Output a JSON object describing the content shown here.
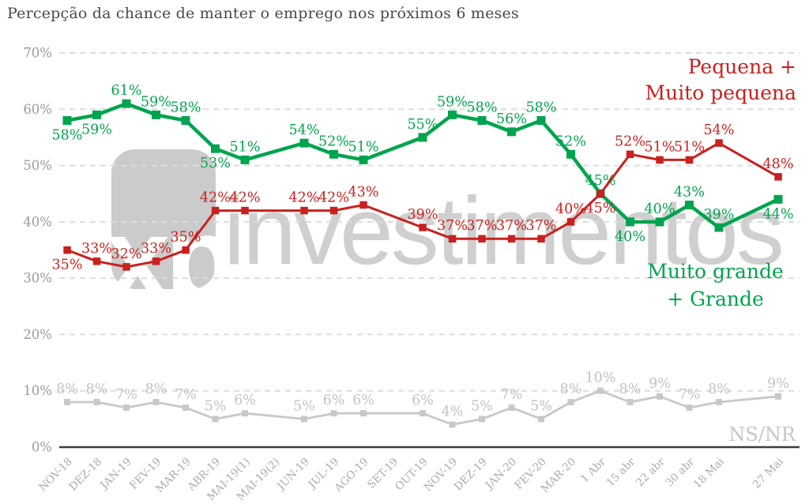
{
  "title": "Percepção da chance de manter o emprego nos próximos 6 meses",
  "watermark": {
    "logo_text": "xp",
    "name_text": "investimentos"
  },
  "chart_data": {
    "type": "line",
    "title": "Percepção da chance de manter o emprego nos próximos 6 meses",
    "categories": [
      "NOV-18",
      "DEZ-18",
      "JAN-19",
      "FEV-19",
      "MAR-19",
      "ABR-19",
      "MAI-19(1)",
      "MAI-19(2)",
      "JUN-19",
      "JUL-19",
      "AGO-19",
      "SET-19",
      "OUT-19",
      "NOV-19",
      "DEZ-19",
      "JAN-20",
      "FEV-20",
      "MAR-20",
      "1 Abr",
      "15 abr",
      "22 abr",
      "30 abr",
      "18 Mai",
      "",
      "27 Mai"
    ],
    "y_axis": {
      "min": 0,
      "max": 70,
      "step": 10,
      "unit": "%",
      "tick_labels": [
        "0%",
        "10%",
        "20%",
        "30%",
        "40%",
        "50%",
        "60%",
        "70%"
      ],
      "grid": "dashed"
    },
    "x_axis": {
      "label_rotation": -45
    },
    "series": [
      {
        "name": "NS/NR",
        "color": "#c8c8c8",
        "label_color": "#c2c2c2",
        "line_width": 2.8,
        "marker_size": 8,
        "values": [
          8,
          8,
          7,
          8,
          7,
          5,
          6,
          null,
          5,
          6,
          6,
          null,
          6,
          4,
          5,
          7,
          5,
          8,
          10,
          8,
          9,
          7,
          8,
          null,
          9
        ],
        "label_pos": [
          "above",
          "above",
          "above",
          "above",
          "above",
          "above",
          "above",
          null,
          "above",
          "above",
          "above",
          null,
          "above",
          "above",
          "above",
          "above",
          "above",
          "above",
          "above",
          "above",
          "above",
          "above",
          "above",
          null,
          "above"
        ]
      },
      {
        "name": "Muito grande + Grande",
        "color": "#00a44e",
        "label_color": "#00a44e",
        "line_width": 4.5,
        "marker_size": 11,
        "values": [
          58,
          59,
          61,
          59,
          58,
          53,
          51,
          null,
          54,
          52,
          51,
          null,
          55,
          59,
          58,
          56,
          58,
          52,
          45,
          40,
          40,
          43,
          39,
          null,
          44
        ],
        "label_pos": [
          "below",
          "below",
          "above",
          "above",
          "above",
          "below",
          "above",
          null,
          "above",
          "above",
          "above",
          null,
          "above",
          "above",
          "above",
          "above",
          "above",
          "above",
          "above",
          "below",
          "above",
          "above",
          "above",
          null,
          "below"
        ]
      },
      {
        "name": "Pequena + Muito pequena",
        "color": "#c8211e",
        "label_color": "#c8211e",
        "line_width": 3,
        "marker_size": 9.5,
        "values": [
          35,
          33,
          32,
          33,
          35,
          42,
          42,
          null,
          42,
          42,
          43,
          null,
          39,
          37,
          37,
          37,
          37,
          40,
          45,
          52,
          51,
          51,
          54,
          null,
          48
        ],
        "label_pos": [
          "below",
          "above",
          "above",
          "above",
          "above",
          "above",
          "above",
          null,
          "above",
          "above",
          "above",
          null,
          "above",
          "above",
          "above",
          "above",
          "above",
          "above",
          "below",
          "above",
          "above",
          "above",
          "above",
          null,
          "above"
        ]
      }
    ],
    "legend": {
      "position": "right",
      "pequena": {
        "lines": [
          "Pequena +",
          "Muito pequena"
        ],
        "color": "#c8211e"
      },
      "grande": {
        "lines": [
          "Muito grande",
          "+ Grande"
        ],
        "color": "#00a44e"
      },
      "nsnr": {
        "lines": [
          "NS/NR"
        ],
        "color": "#c6c6c6"
      }
    },
    "colors": {
      "grid": "#dcdcdc",
      "axis": "#3d3d3d",
      "y_ticks": "#9b9b9b",
      "x_ticks": "#ababab",
      "title": "#4a4a4a",
      "watermark": "#cbcbcb"
    }
  }
}
